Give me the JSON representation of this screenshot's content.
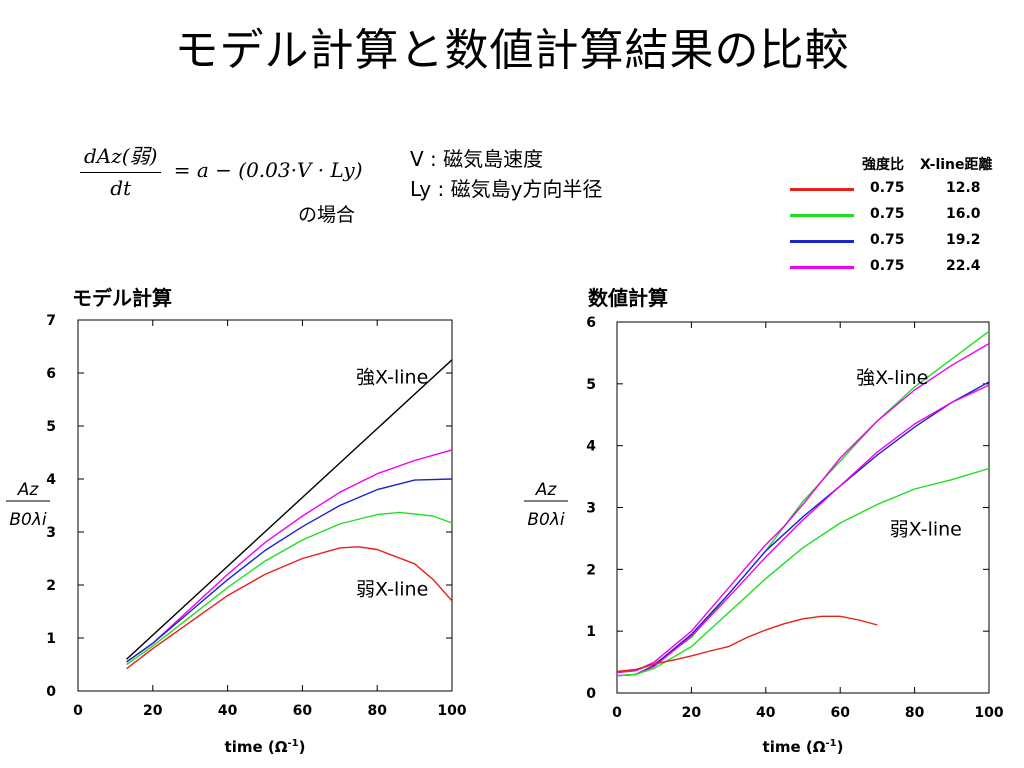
{
  "slide": {
    "title": "モデル計算と数値計算結果の比較",
    "formula": {
      "numerator": "dAz(弱)",
      "denominator": "dt",
      "rhs": "= a − (0.03·V · Ly)"
    },
    "formula_note": "の場合",
    "definitions": [
      "V : 磁気島速度",
      "Ly : 磁気島y方向半径"
    ]
  },
  "legend": {
    "header_ratio": "強度比",
    "header_distance": "X-line距離",
    "rows": [
      {
        "color": "#e8201c",
        "ratio": "0.75",
        "distance": "12.8"
      },
      {
        "color": "#22dd22",
        "ratio": "0.75",
        "distance": "16.0"
      },
      {
        "color": "#1d24c8",
        "ratio": "0.75",
        "distance": "19.2"
      },
      {
        "color": "#f000f0",
        "ratio": "0.75",
        "distance": "22.4"
      }
    ]
  },
  "panels": {
    "left_title": "モデル計算",
    "right_title": "数値計算"
  },
  "chart_data": [
    {
      "type": "line",
      "title": "モデル計算",
      "xlabel": "time (Ω-1)",
      "ylabel": "Az / B0λi",
      "xlim": [
        0,
        100
      ],
      "ylim": [
        0,
        7
      ],
      "xticks": [
        "0",
        "20",
        "40",
        "60",
        "80",
        "100"
      ],
      "yticks": [
        "0",
        "1",
        "2",
        "3",
        "4",
        "5",
        "6",
        "7"
      ],
      "annotations": [
        {
          "text": "強X-line",
          "x": 84,
          "y": 5.8
        },
        {
          "text": "弱X-line",
          "x": 84,
          "y": 1.8
        }
      ],
      "series": [
        {
          "color": "#000000",
          "x": [
            13,
            100
          ],
          "y": [
            0.6,
            6.25
          ]
        },
        {
          "color": "#f000f0",
          "x": [
            13,
            20,
            30,
            40,
            50,
            60,
            70,
            80,
            90,
            100
          ],
          "y": [
            0.55,
            0.9,
            1.55,
            2.2,
            2.8,
            3.3,
            3.75,
            4.1,
            4.35,
            4.55
          ]
        },
        {
          "color": "#1d24c8",
          "x": [
            13,
            20,
            30,
            40,
            50,
            60,
            70,
            80,
            90,
            100
          ],
          "y": [
            0.55,
            0.9,
            1.5,
            2.1,
            2.65,
            3.1,
            3.5,
            3.8,
            3.98,
            4.0
          ]
        },
        {
          "color": "#22dd22",
          "x": [
            13,
            20,
            30,
            40,
            50,
            60,
            70,
            80,
            86,
            95,
            100
          ],
          "y": [
            0.5,
            0.85,
            1.4,
            1.95,
            2.45,
            2.85,
            3.15,
            3.33,
            3.37,
            3.3,
            3.17
          ]
        },
        {
          "color": "#e8201c",
          "x": [
            13,
            20,
            30,
            40,
            50,
            60,
            70,
            75,
            80,
            90,
            95,
            100
          ],
          "y": [
            0.42,
            0.8,
            1.3,
            1.8,
            2.2,
            2.5,
            2.7,
            2.72,
            2.67,
            2.4,
            2.1,
            1.7
          ]
        }
      ]
    },
    {
      "type": "line",
      "title": "数値計算",
      "xlabel": "time (Ω-1)",
      "ylabel": "Az / B0λi",
      "xlim": [
        0,
        100
      ],
      "ylim": [
        0,
        6
      ],
      "xticks": [
        "0",
        "20",
        "40",
        "60",
        "80",
        "100"
      ],
      "yticks": [
        "0",
        "1",
        "2",
        "3",
        "4",
        "5",
        "6"
      ],
      "annotations": [
        {
          "text": "強X-line",
          "x": 74,
          "y": 5.0
        },
        {
          "text": "弱X-line",
          "x": 83,
          "y": 2.55
        }
      ],
      "series": [
        {
          "color": "#22dd22",
          "x": [
            0,
            5,
            10,
            20,
            30,
            40,
            50,
            60,
            70,
            80,
            90,
            100
          ],
          "y": [
            0.33,
            0.36,
            0.47,
            0.9,
            1.6,
            2.3,
            3.1,
            3.75,
            4.4,
            4.95,
            5.4,
            5.85
          ]
        },
        {
          "color": "#f000f0",
          "x": [
            0,
            5,
            10,
            20,
            30,
            40,
            45,
            50,
            60,
            70,
            80,
            90,
            100
          ],
          "y": [
            0.33,
            0.36,
            0.5,
            1.0,
            1.7,
            2.4,
            2.7,
            3.05,
            3.8,
            4.4,
            4.9,
            5.3,
            5.65
          ]
        },
        {
          "color": "#1d24c8",
          "x": [
            0,
            5,
            10,
            20,
            30,
            40,
            50,
            60,
            70,
            80,
            90,
            100
          ],
          "y": [
            0.28,
            0.3,
            0.45,
            0.95,
            1.6,
            2.3,
            2.85,
            3.35,
            3.85,
            4.3,
            4.7,
            5.03
          ]
        },
        {
          "color": "#f000f0",
          "x": [
            0,
            5,
            10,
            20,
            30,
            40,
            50,
            60,
            70,
            80,
            90,
            100
          ],
          "y": [
            0.28,
            0.3,
            0.43,
            0.92,
            1.55,
            2.2,
            2.8,
            3.35,
            3.9,
            4.35,
            4.7,
            4.98
          ]
        },
        {
          "color": "#22dd22",
          "x": [
            0,
            5,
            10,
            20,
            30,
            40,
            50,
            60,
            70,
            80,
            90,
            100
          ],
          "y": [
            0.28,
            0.3,
            0.4,
            0.75,
            1.3,
            1.85,
            2.35,
            2.75,
            3.05,
            3.3,
            3.45,
            3.63
          ]
        },
        {
          "color": "#e8201c",
          "x": [
            0,
            5,
            10,
            15,
            20,
            25,
            30,
            35,
            40,
            45,
            50,
            55,
            60,
            65,
            70
          ],
          "y": [
            0.35,
            0.38,
            0.47,
            0.53,
            0.6,
            0.68,
            0.75,
            0.9,
            1.02,
            1.12,
            1.2,
            1.24,
            1.24,
            1.18,
            1.1
          ]
        }
      ]
    }
  ]
}
